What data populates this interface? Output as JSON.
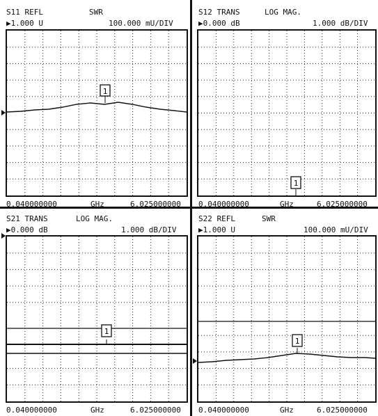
{
  "panels": [
    {
      "id": "s11",
      "param": "S11 REFL",
      "format": "SWR",
      "ref_value": "▶1.000 U",
      "scale": "100.000 mU/DIV",
      "start": "0.040000000",
      "unit": "GHz",
      "stop": "6.025000000",
      "marker": "1"
    },
    {
      "id": "s12",
      "param": "S12 TRANS",
      "format": "LOG MAG.",
      "ref_value": "▶0.000 dB",
      "scale": "1.000 dB/DIV",
      "start": "0.040000000",
      "unit": "GHz",
      "stop": "6.025000000",
      "marker": "1"
    },
    {
      "id": "s21",
      "param": "S21 TRANS",
      "format": "LOG MAG.",
      "ref_value": "▶0.000 dB",
      "scale": "1.000 dB/DIV",
      "start": "0.040000000",
      "unit": "GHz",
      "stop": "6.025000000",
      "marker": "1"
    },
    {
      "id": "s22",
      "param": "S22 REFL",
      "format": "SWR",
      "ref_value": "▶1.000 U",
      "scale": "100.000 mU/DIV",
      "start": "0.040000000",
      "unit": "GHz",
      "stop": "6.025000000",
      "marker": "1"
    }
  ]
}
